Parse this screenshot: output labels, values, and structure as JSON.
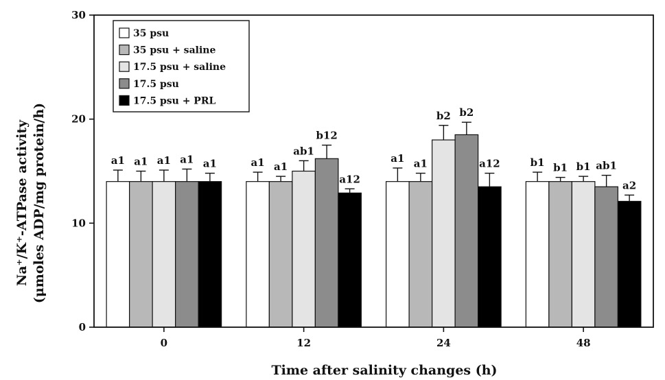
{
  "chart_data": {
    "type": "bar",
    "title": "",
    "xlabel": "Time after salinity changes (h)",
    "ylabel_line1": "Na⁺/K⁺-ATPase activity",
    "ylabel_line2": "(μmoles ADP/mg protein/h)",
    "categories": [
      "0",
      "12",
      "24",
      "48"
    ],
    "ylim": [
      0,
      30
    ],
    "yticks": [
      0,
      10,
      20,
      30
    ],
    "legend_position": "top-left",
    "series": [
      {
        "name": "35 psu",
        "color": "#ffffff",
        "values": [
          14.0,
          14.0,
          14.0,
          14.0
        ],
        "errors": [
          1.1,
          0.9,
          1.3,
          0.9
        ],
        "labels": [
          "a1",
          "a1",
          "a1",
          "b1"
        ]
      },
      {
        "name": "35 psu + saline",
        "color": "#b8b8b8",
        "values": [
          14.0,
          14.0,
          14.0,
          14.0
        ],
        "errors": [
          1.0,
          0.5,
          0.8,
          0.4
        ],
        "labels": [
          "a1",
          "a1",
          "a1",
          "b1"
        ]
      },
      {
        "name": "17.5 psu + saline",
        "color": "#e4e4e4",
        "values": [
          14.0,
          15.0,
          18.0,
          14.0
        ],
        "errors": [
          1.1,
          1.0,
          1.4,
          0.5
        ],
        "labels": [
          "a1",
          "ab1",
          "b2",
          "b1"
        ]
      },
      {
        "name": "17.5 psu",
        "color": "#8c8c8c",
        "values": [
          14.0,
          16.2,
          18.5,
          13.5
        ],
        "errors": [
          1.2,
          1.3,
          1.2,
          1.1
        ],
        "labels": [
          "a1",
          "b12",
          "b2",
          "ab1"
        ]
      },
      {
        "name": "17.5 psu + PRL",
        "color": "#000000",
        "values": [
          14.0,
          12.9,
          13.5,
          12.1
        ],
        "errors": [
          0.8,
          0.4,
          1.3,
          0.6
        ],
        "labels": [
          "a1",
          "a12",
          "a12",
          "a2"
        ]
      }
    ]
  }
}
